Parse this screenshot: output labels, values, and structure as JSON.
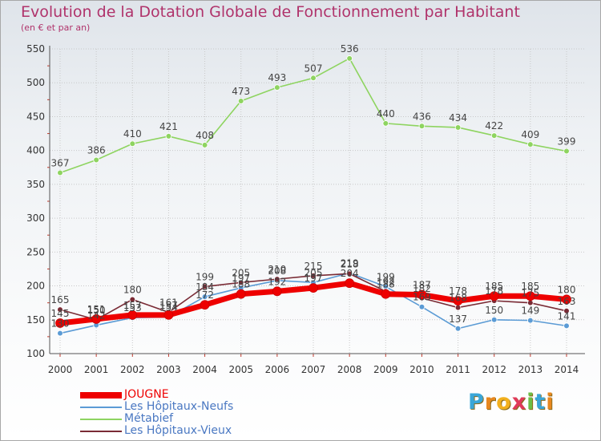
{
  "title": "Evolution de la Dotation Globale de Fonctionnement par Habitant",
  "subtitle": "(en € et par an)",
  "logo": [
    "P",
    "r",
    "o",
    "x",
    "i",
    "t",
    "i"
  ],
  "logo_colors": [
    "#3aa6d8",
    "#e8871e",
    "#f2b01e",
    "#e03a5a",
    "#6cbe45",
    "#3aa6d8",
    "#e8871e"
  ],
  "chart_data": {
    "type": "line",
    "x": [
      "2000",
      "2001",
      "2002",
      "2003",
      "2004",
      "2005",
      "2006",
      "2007",
      "2008",
      "2009",
      "2010",
      "2011",
      "2012",
      "2013",
      "2014"
    ],
    "ylim": [
      100,
      550
    ],
    "yticks": [
      "100",
      "150",
      "200",
      "250",
      "300",
      "350",
      "400",
      "450",
      "500",
      "550"
    ],
    "grid": true,
    "series": [
      {
        "name": "JOUGNE",
        "color": "#ee0000",
        "values": [
          145,
          151,
          157,
          157,
          172,
          188,
          192,
          197,
          204,
          188,
          187,
          178,
          185,
          185,
          180
        ],
        "labels": [
          "145",
          "151",
          "157",
          "157",
          "172",
          "188",
          "192",
          "197",
          "204",
          "188",
          "187",
          "178",
          "185",
          "185",
          "180"
        ]
      },
      {
        "name": "Les Hôpitaux-Neufs",
        "color": "#5b9bd5",
        "values": [
          130,
          142,
          153,
          154,
          184,
          197,
          208,
          205,
          219,
          199,
          169,
          137,
          150,
          149,
          141
        ],
        "labels": [
          "130",
          "142",
          "153",
          "154",
          "184",
          "197",
          "208",
          "205",
          "219",
          "199",
          "169",
          "137",
          "150",
          "149",
          "141"
        ]
      },
      {
        "name": "Métabief",
        "color": "#8ed460",
        "values": [
          367,
          386,
          410,
          421,
          408,
          473,
          493,
          507,
          536,
          440,
          436,
          434,
          422,
          409,
          399
        ],
        "labels": [
          "367",
          "386",
          "410",
          "421",
          "408",
          "473",
          "493",
          "507",
          "536",
          "440",
          "436",
          "434",
          "422",
          "409",
          "399"
        ]
      },
      {
        "name": "Les Hôpitaux-Vieux",
        "color": "#7a2b35",
        "values": [
          165,
          150,
          180,
          161,
          199,
          205,
          210,
          215,
          218,
          192,
          182,
          168,
          178,
          175,
          163
        ],
        "labels": [
          "165",
          "150",
          "180",
          "161",
          "199",
          "205",
          "210",
          "215",
          "218",
          "192",
          "182",
          "168",
          "178",
          "175",
          "163"
        ]
      }
    ]
  }
}
